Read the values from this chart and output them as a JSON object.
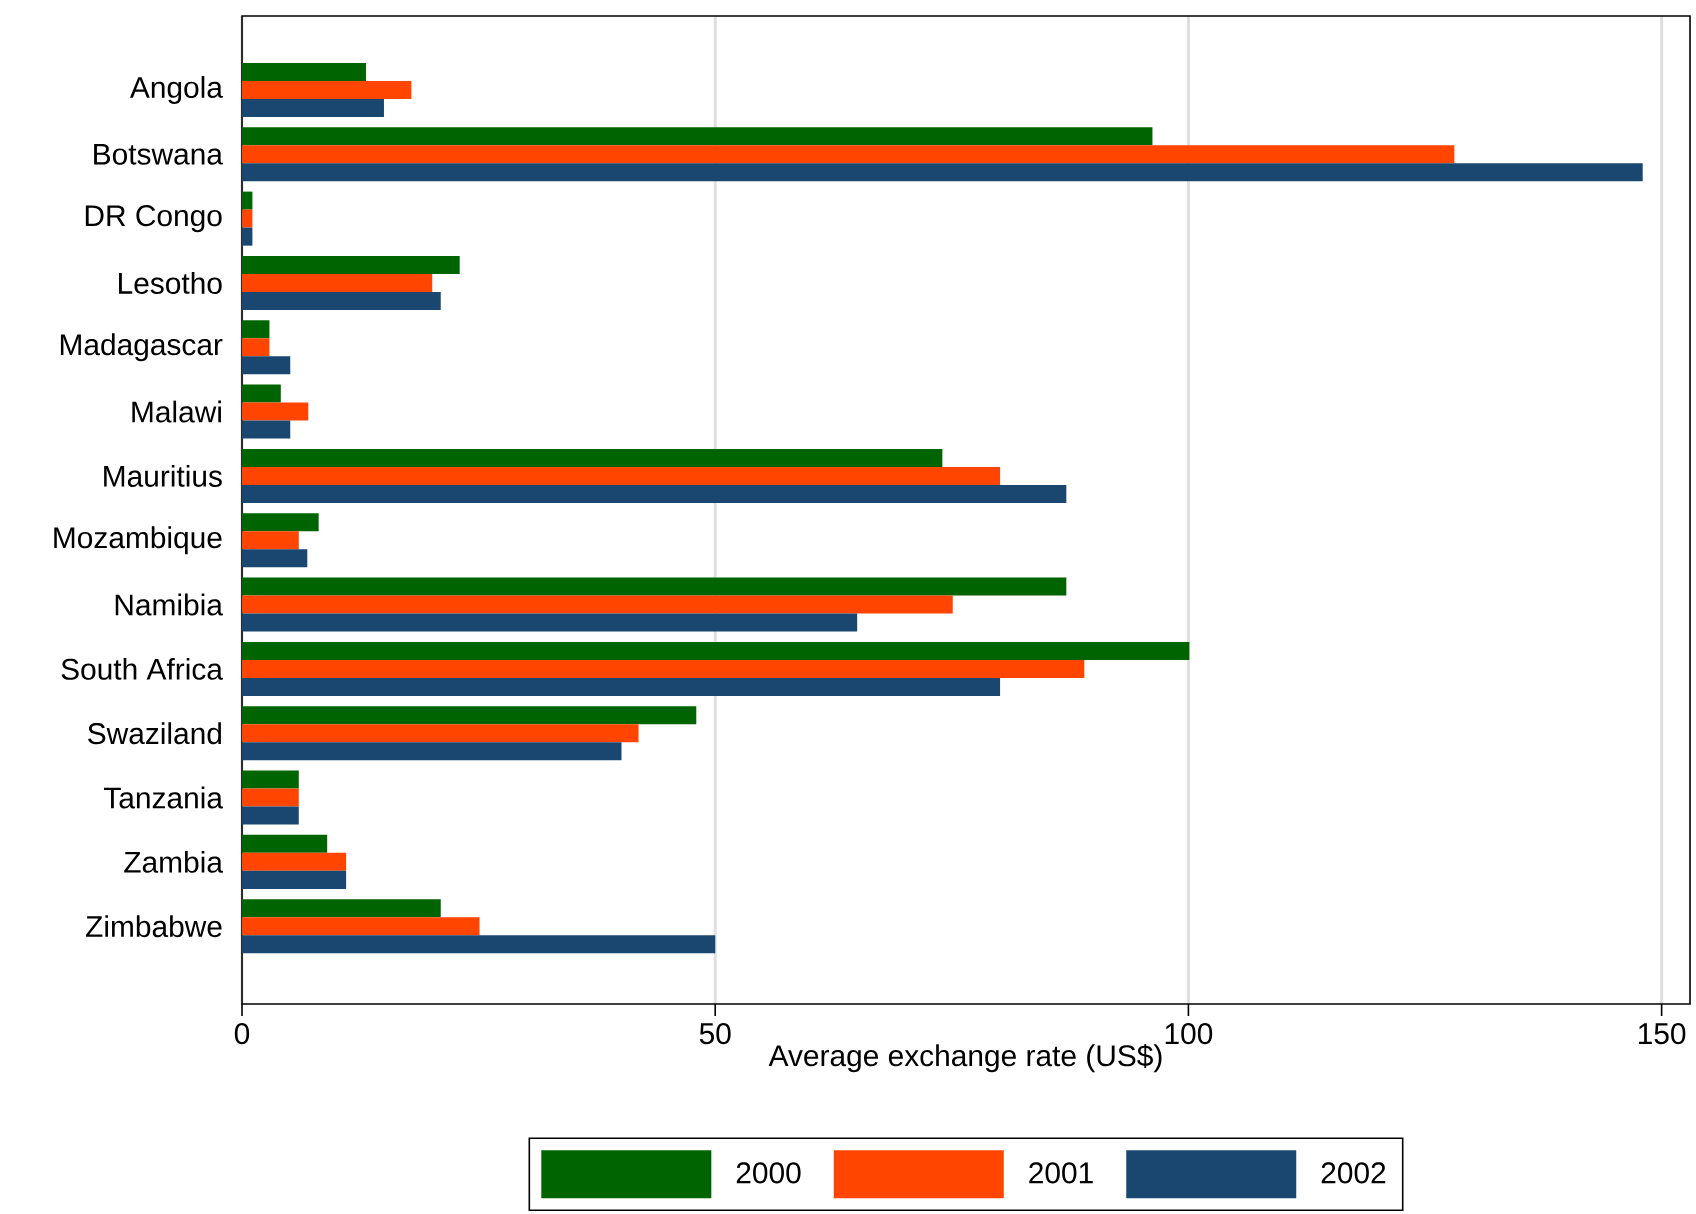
{
  "chart_data": {
    "type": "bar",
    "orientation": "horizontal",
    "categories": [
      "Angola",
      "Botswana",
      "DR Congo",
      "Lesotho",
      "Madagascar",
      "Malawi",
      "Mauritius",
      "Mozambique",
      "Namibia",
      "South Africa",
      "Swaziland",
      "Tanzania",
      "Zambia",
      "Zimbabwe"
    ],
    "series": [
      {
        "name": "2000",
        "color": "#006400",
        "values": [
          13.1,
          96.2,
          1.1,
          23.0,
          2.9,
          4.1,
          74.0,
          8.1,
          87.1,
          100.1,
          48.0,
          6.0,
          9.0,
          21.0
        ]
      },
      {
        "name": "2001",
        "color": "#ff4500",
        "values": [
          17.9,
          128.1,
          1.1,
          20.1,
          2.9,
          7.0,
          80.1,
          6.0,
          75.1,
          89.0,
          41.9,
          6.0,
          11.0,
          25.1
        ]
      },
      {
        "name": "2002",
        "color": "#1a476f",
        "values": [
          15.0,
          148.0,
          1.1,
          21.0,
          5.1,
          5.1,
          87.1,
          6.9,
          65.0,
          80.1,
          40.1,
          6.0,
          11.0,
          50.0
        ]
      }
    ],
    "xlabel": "Average exchange rate (US$)",
    "xlim": [
      0,
      153
    ],
    "xticks": [
      0,
      50,
      100,
      150
    ],
    "grid": "x",
    "legend": "bottom"
  }
}
